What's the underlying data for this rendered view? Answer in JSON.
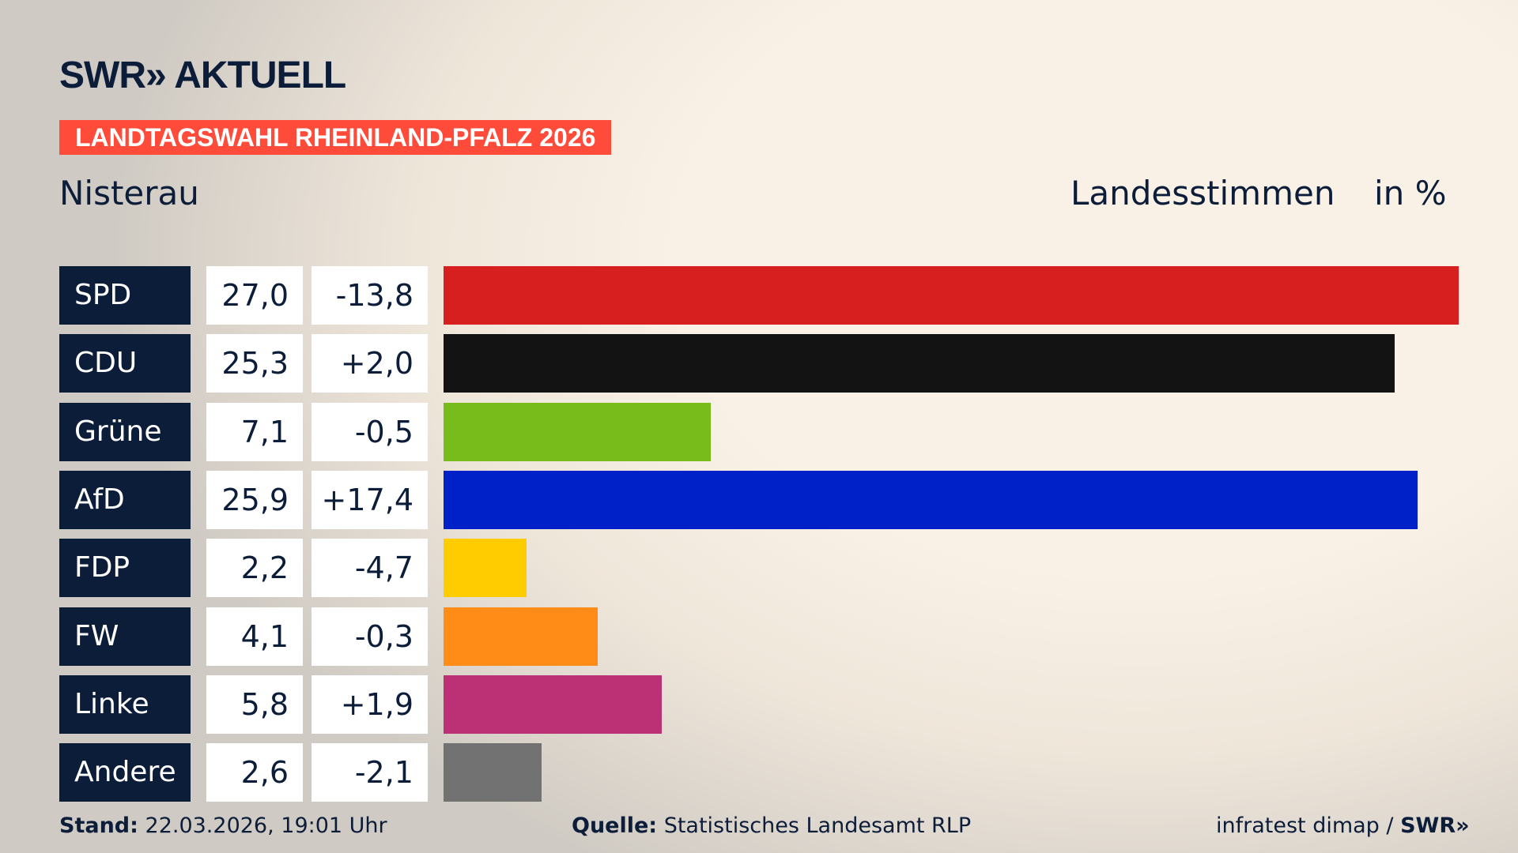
{
  "header": {
    "logo": "SWR» AKTUELL",
    "banner": "LANDTAGSWAHL RHEINLAND-PFALZ 2026",
    "region": "Nisterau",
    "measure": "Landesstimmen",
    "unit": "in %"
  },
  "colors": {
    "banner": "#ff4b3a",
    "label_bg": "#0c1d3a"
  },
  "chart_data": {
    "type": "bar",
    "orientation": "horizontal",
    "categories": [
      "SPD",
      "CDU",
      "Grüne",
      "AfD",
      "FDP",
      "FW",
      "Linke",
      "Andere"
    ],
    "values": [
      27.0,
      25.3,
      7.1,
      25.9,
      2.2,
      4.1,
      5.8,
      2.6
    ],
    "values_label": [
      "27,0",
      "25,3",
      "7,1",
      "25,9",
      "2,2",
      "4,1",
      "5,8",
      "2,6"
    ],
    "changes_label": [
      "-13,8",
      "+2,0",
      "-0,5",
      "+17,4",
      "-4,7",
      "-0,3",
      "+1,9",
      "-2,1"
    ],
    "changes": [
      -13.8,
      2.0,
      -0.5,
      17.4,
      -4.7,
      -0.3,
      1.9,
      -2.1
    ],
    "colors": [
      "#d81f20",
      "#131313",
      "#78bc1b",
      "#0021c8",
      "#ffcc00",
      "#ff8c16",
      "#bc3176",
      "#727272"
    ],
    "ylabel": "Landesstimmen",
    "unit": "in %",
    "grid": false
  },
  "footer": {
    "stand_label": "Stand:",
    "stand_value": "22.03.2026, 19:01 Uhr",
    "source_label": "Quelle:",
    "source_value": "Statistisches Landesamt RLP",
    "credit": "infratest dimap / ",
    "credit_logo": "SWR»"
  }
}
